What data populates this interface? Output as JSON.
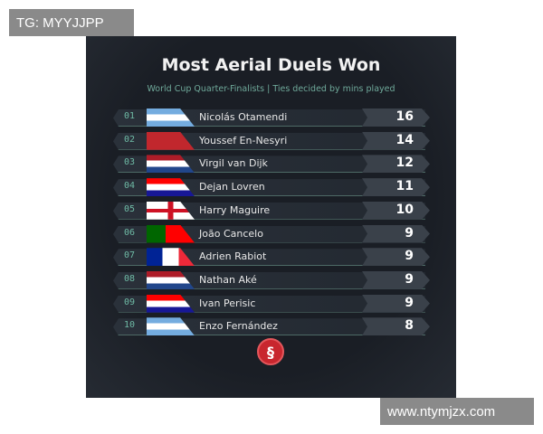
{
  "watermarks": {
    "top_left": "TG: MYYJJPP",
    "bottom_right": "www.ntymjzx.com"
  },
  "title": "Most Aerial Duels Won",
  "subtitle": "World Cup Quarter-Finalists | Ties decided by mins played",
  "rows": [
    {
      "rank": "01",
      "flag": "argentina",
      "name": "Nicolás Otamendi",
      "value": "16"
    },
    {
      "rank": "02",
      "flag": "morocco",
      "name": "Youssef En-Nesyri",
      "value": "14"
    },
    {
      "rank": "03",
      "flag": "netherlands",
      "name": "Virgil van Dijk",
      "value": "12"
    },
    {
      "rank": "04",
      "flag": "croatia",
      "name": "Dejan Lovren",
      "value": "11"
    },
    {
      "rank": "05",
      "flag": "england",
      "name": "Harry Maguire",
      "value": "10"
    },
    {
      "rank": "06",
      "flag": "portugal",
      "name": "João Cancelo",
      "value": "9"
    },
    {
      "rank": "07",
      "flag": "france",
      "name": "Adrien Rabiot",
      "value": "9"
    },
    {
      "rank": "08",
      "flag": "netherlands",
      "name": "Nathan Aké",
      "value": "9"
    },
    {
      "rank": "09",
      "flag": "croatia",
      "name": "Ivan Perisic",
      "value": "9"
    },
    {
      "rank": "10",
      "flag": "argentina",
      "name": "Enzo Fernández",
      "value": "8"
    }
  ],
  "colors": {
    "background": "#1a1e25",
    "accent": "#6fbaa5",
    "logo": "#c8262e"
  }
}
